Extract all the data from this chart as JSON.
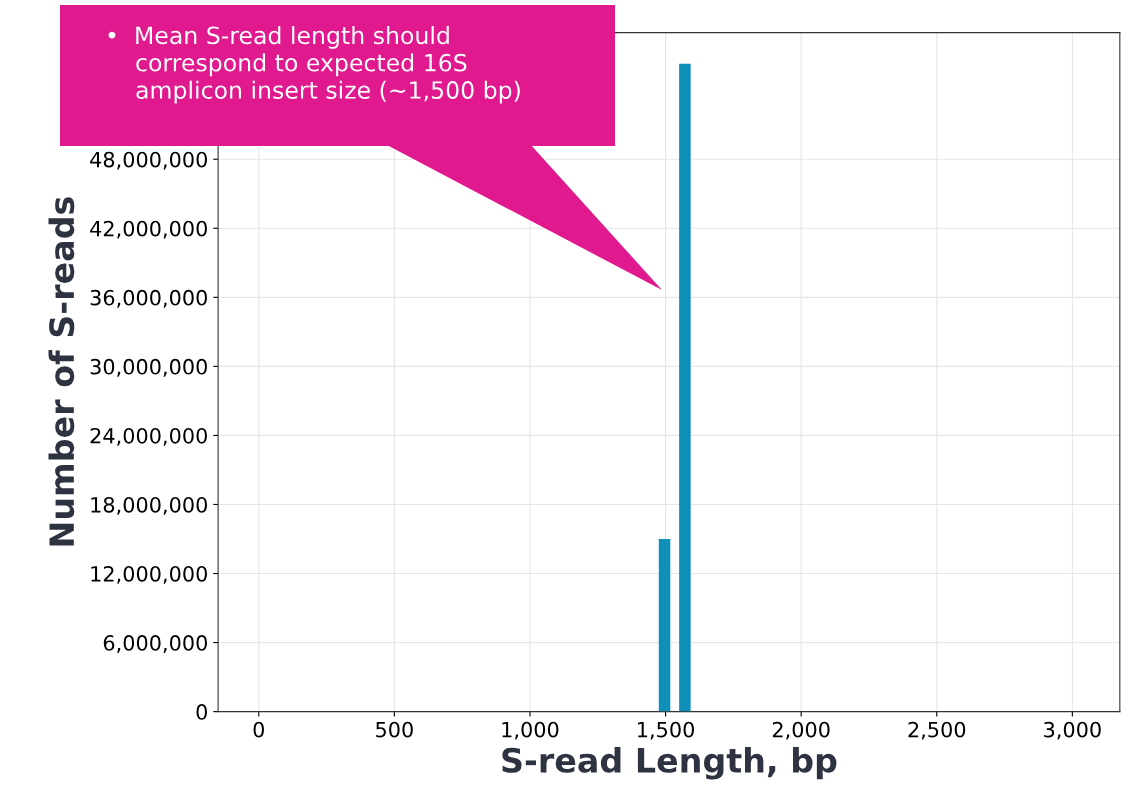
{
  "chart_data": {
    "type": "histogram",
    "xlabel": "S-read Length, bp",
    "ylabel": "Number of S-reads",
    "bins": [
      1475,
      1525,
      1550,
      1600
    ],
    "values": [
      15000000,
      0,
      56300000
    ],
    "color": "#0e8fb8",
    "xlim": [
      -150,
      3175
    ],
    "xticks": [
      {
        "value": 0,
        "label": "0"
      },
      {
        "value": 500,
        "label": "500"
      },
      {
        "value": 1000,
        "label": "1,000"
      },
      {
        "value": 1500,
        "label": "1,500"
      },
      {
        "value": 2000,
        "label": "2,000"
      },
      {
        "value": 2500,
        "label": "2,500"
      },
      {
        "value": 3000,
        "label": "3,000"
      }
    ],
    "ylim": [
      0,
      59000000
    ],
    "yticks": [
      {
        "value": 0,
        "label": "0"
      },
      {
        "value": 6000000,
        "label": "6,000,000"
      },
      {
        "value": 12000000,
        "label": "12,000,000"
      },
      {
        "value": 18000000,
        "label": "18,000,000"
      },
      {
        "value": 24000000,
        "label": "24,000,000"
      },
      {
        "value": 30000000,
        "label": "30,000,000"
      },
      {
        "value": 36000000,
        "label": "36,000,000"
      },
      {
        "value": 42000000,
        "label": "42,000,000"
      },
      {
        "value": 48000000,
        "label": "48,000,000"
      }
    ],
    "grid": true,
    "annotations": [
      "•  Mean S-read length should\n    correspond to expected 16S\n    amplicon insert size (~1,500 bp)"
    ]
  }
}
